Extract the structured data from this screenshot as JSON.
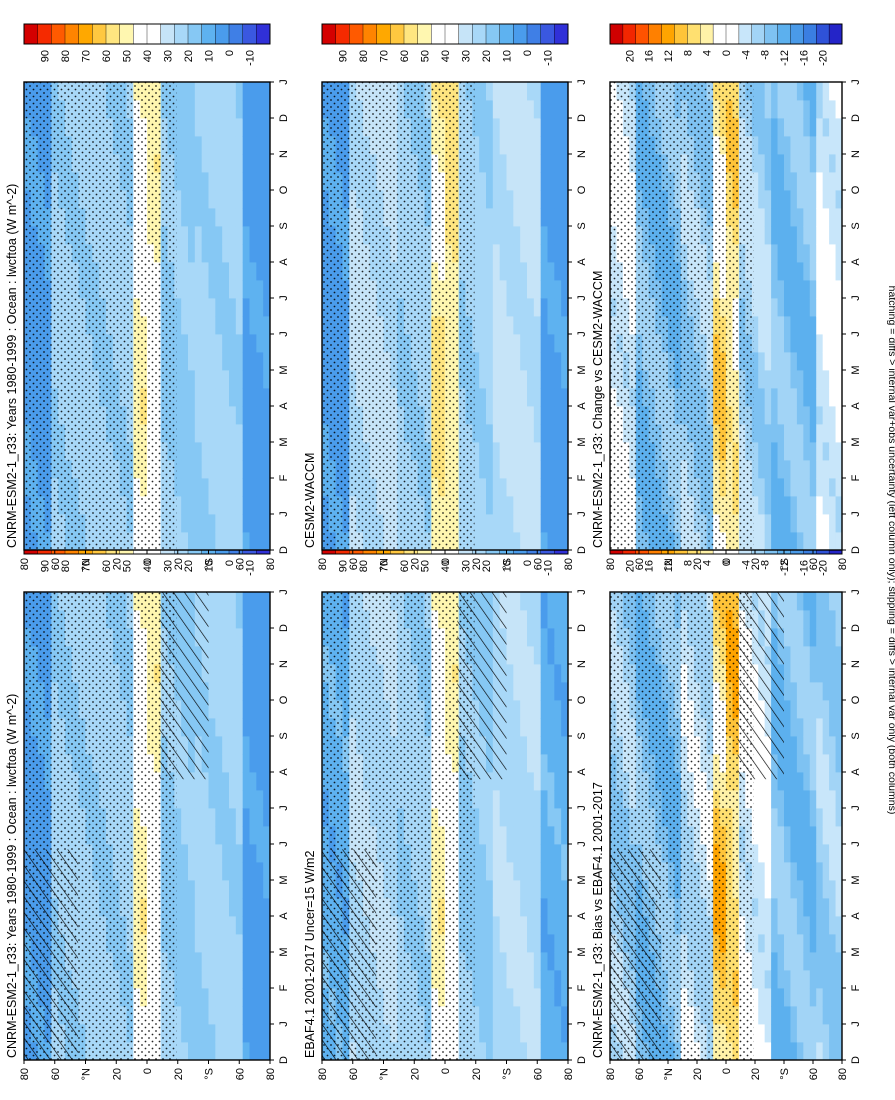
{
  "figure_caption": "hatching = diffs > internal var+obs uncertainty (left column only); stippling = diffs > internal var only (both columns)",
  "axis_labels": {
    "months": [
      "D",
      "J",
      "F",
      "M",
      "A",
      "M",
      "J",
      "J",
      "A",
      "S",
      "O",
      "N",
      "D",
      "J"
    ],
    "latitudes": [
      "80",
      "60",
      "°N",
      "20",
      "0",
      "20",
      "°S",
      "60",
      "80"
    ]
  },
  "colors": {
    "abs_palette": [
      "#3030d8",
      "#3a58e0",
      "#3f7fe6",
      "#4a9cec",
      "#5eb2f0",
      "#86c8f4",
      "#a8d8f8",
      "#c6e4f8",
      "#ffffff",
      "#ffffff",
      "#fff7b0",
      "#ffe680",
      "#ffc840",
      "#ffa800",
      "#ff8400",
      "#ff5a00",
      "#f52a00",
      "#d40000"
    ],
    "diff_palette": [
      "#2424c8",
      "#2f52d8",
      "#3a7ee2",
      "#4a9ae8",
      "#5cb0ee",
      "#7ec2f2",
      "#a2d4f6",
      "#c8e6fa",
      "#ffffff",
      "#ffffff",
      "#fff2a8",
      "#ffe070",
      "#ffc438",
      "#ffa400",
      "#ff8000",
      "#ff5200",
      "#f22600",
      "#d00000"
    ]
  },
  "chart_data": [
    {
      "type": "heatmap",
      "title": "CNRM-ESM2-1_r33: Years 1980-1999 : Ocean : lwcftoa (W m^-2)",
      "x_labels": [
        "D",
        "J",
        "F",
        "M",
        "A",
        "M",
        "J",
        "J",
        "A",
        "S",
        "O",
        "N",
        "D",
        "J"
      ],
      "y_labels": [
        "80",
        "60",
        "°N",
        "20",
        "0",
        "20",
        "°S",
        "60",
        "80"
      ],
      "colorbar": {
        "labels": [
          "90",
          "80",
          "70",
          "60",
          "50",
          "40",
          "30",
          "20",
          "10",
          "0",
          "-10"
        ],
        "range": [
          -10,
          90
        ]
      },
      "overlays": [
        "stippling",
        "hatching"
      ],
      "approx_values": {
        "deep_tropics": 45,
        "north_subtropics": 25,
        "south_subtropics": 22,
        "midlatitudes": 25,
        "polar": 10
      }
    },
    {
      "type": "heatmap",
      "title": "CNRM-ESM2-1_r33: Years 1980-1999 : Ocean : lwcftoa (W m^-2)",
      "x_labels": [
        "D",
        "J",
        "F",
        "M",
        "A",
        "M",
        "J",
        "J",
        "A",
        "S",
        "O",
        "N",
        "D",
        "J"
      ],
      "y_labels": [
        "80",
        "60",
        "°N",
        "20",
        "0",
        "20",
        "°S",
        "60",
        "80"
      ],
      "colorbar": {
        "labels": [
          "90",
          "80",
          "70",
          "60",
          "50",
          "40",
          "30",
          "20",
          "10",
          "0",
          "-10"
        ],
        "range": [
          -10,
          90
        ]
      },
      "overlays": [
        "stippling"
      ],
      "approx_values": {
        "deep_tropics": 45,
        "north_subtropics": 25,
        "south_subtropics": 22,
        "midlatitudes": 25,
        "polar": 10
      }
    },
    {
      "type": "heatmap",
      "title": "EBAF4.1 2001-2017 Uncer=15 W/m2",
      "x_labels": [
        "D",
        "J",
        "F",
        "M",
        "A",
        "M",
        "J",
        "J",
        "A",
        "S",
        "O",
        "N",
        "D",
        "J"
      ],
      "y_labels": [
        "80",
        "60",
        "°N",
        "20",
        "0",
        "20",
        "°S",
        "60",
        "80"
      ],
      "colorbar": {
        "labels": [
          "90",
          "80",
          "70",
          "60",
          "50",
          "40",
          "30",
          "20",
          "10",
          "0",
          "-10"
        ],
        "range": [
          -10,
          90
        ]
      },
      "overlays": [
        "stippling",
        "hatching"
      ],
      "approx_values": {
        "deep_tropics": 45,
        "north_subtropics": 25,
        "south_subtropics": 22,
        "midlatitudes": 28,
        "polar": 15
      }
    },
    {
      "type": "heatmap",
      "title": "CESM2-WACCM",
      "x_labels": [
        "D",
        "J",
        "F",
        "M",
        "A",
        "M",
        "J",
        "J",
        "A",
        "S",
        "O",
        "N",
        "D",
        "J"
      ],
      "y_labels": [
        "80",
        "60",
        "°N",
        "20",
        "0",
        "20",
        "°S",
        "60",
        "80"
      ],
      "colorbar": {
        "labels": [
          "90",
          "80",
          "70",
          "60",
          "50",
          "40",
          "30",
          "20",
          "10",
          "0",
          "-10"
        ],
        "range": [
          -10,
          90
        ]
      },
      "overlays": [
        "stippling"
      ],
      "approx_values": {
        "deep_tropics": 50,
        "north_subtropics": 25,
        "south_subtropics": 25,
        "midlatitudes": 30,
        "polar": 10
      }
    },
    {
      "type": "heatmap",
      "title": "CNRM-ESM2-1_r33: Bias vs EBAF4.1 2001-2017",
      "x_labels": [
        "D",
        "J",
        "F",
        "M",
        "A",
        "M",
        "J",
        "J",
        "A",
        "S",
        "O",
        "N",
        "D",
        "J"
      ],
      "y_labels": [
        "80",
        "60",
        "°N",
        "20",
        "0",
        "20",
        "°S",
        "60",
        "80"
      ],
      "colorbar": {
        "labels": [
          "20",
          "16",
          "12",
          "8",
          "4",
          "0",
          "-4",
          "-8",
          "-12",
          "-16",
          "-20"
        ],
        "range": [
          -20,
          20
        ]
      },
      "overlays": [
        "stippling",
        "hatching"
      ],
      "approx_values": {
        "deep_tropics": 6,
        "north_subtropics": -4,
        "south_subtropics": -2,
        "midlatitudes": -8,
        "polar": -6
      }
    },
    {
      "type": "heatmap",
      "title": "CNRM-ESM2-1_r33: Change vs CESM2-WACCM",
      "x_labels": [
        "D",
        "J",
        "F",
        "M",
        "A",
        "M",
        "J",
        "J",
        "A",
        "S",
        "O",
        "N",
        "D",
        "J"
      ],
      "y_labels": [
        "80",
        "60",
        "°N",
        "20",
        "0",
        "20",
        "°S",
        "60",
        "80"
      ],
      "colorbar": {
        "labels": [
          "20",
          "16",
          "12",
          "8",
          "4",
          "0",
          "-4",
          "-8",
          "-12",
          "-16",
          "-20"
        ],
        "range": [
          -20,
          20
        ]
      },
      "overlays": [
        "stippling"
      ],
      "approx_values": {
        "deep_tropics": 4,
        "north_subtropics": -6,
        "south_subtropics": -5,
        "midlatitudes": -8,
        "polar": -2
      }
    }
  ]
}
